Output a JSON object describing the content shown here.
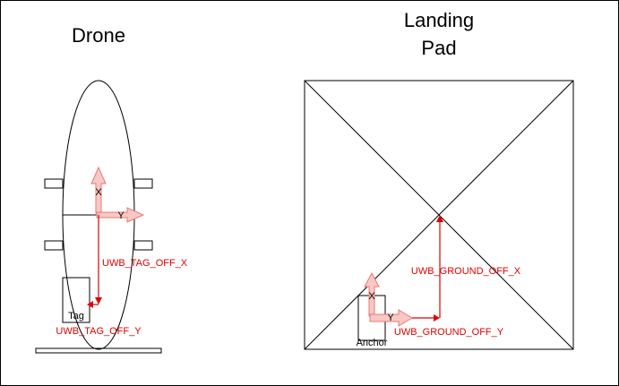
{
  "drone": {
    "title": "Drone",
    "axis_x": "X",
    "axis_y": "Y",
    "tag_label": "Tag",
    "offset_x_label": "UWB_TAG_OFF_X",
    "offset_y_label": "UWB_TAG_OFF_Y"
  },
  "pad": {
    "title_line1": "Landing",
    "title_line2": "Pad",
    "axis_x": "X",
    "axis_y": "Y",
    "anchor_label": "Anchor",
    "offset_x_label": "UWB_GROUND_OFF_X",
    "offset_y_label": "UWB_GROUND_OFF_Y"
  },
  "colors": {
    "offset_red": "#e00000",
    "axis_arrow_fill": "#f8c8c4",
    "axis_arrow_stroke": "#e87a72"
  }
}
